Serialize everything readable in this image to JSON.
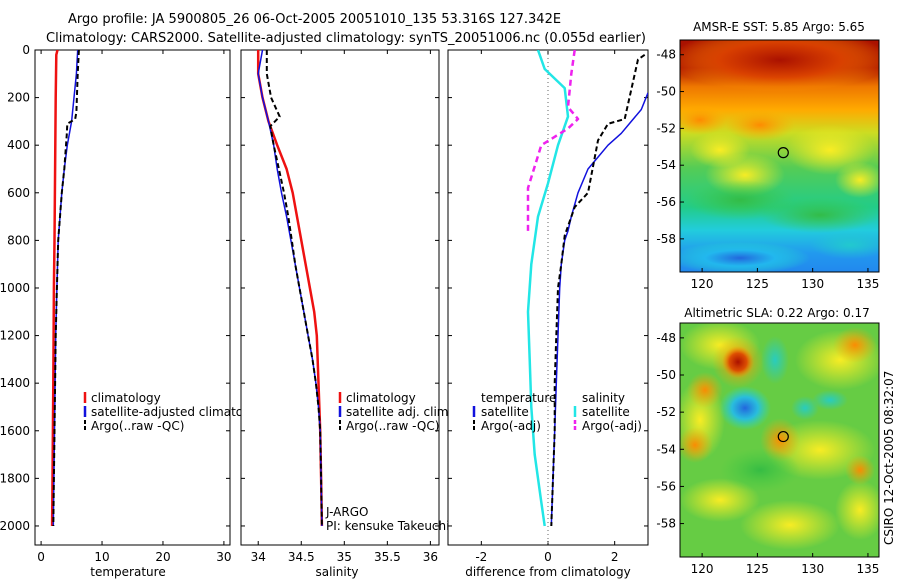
{
  "figure": {
    "title_line1": "Argo profile: JA 5900805_26 06-Oct-2005 20051010_135 53.316S 127.342E",
    "title_line2": "Climatology: CARS2000. Satellite-adjusted climatology: synTS_20051006.nc (0.055d earlier)",
    "credit": "CSIRO 12-Oct-2005 08:32:07"
  },
  "colors": {
    "climatology": "#ee1111",
    "satellite": "#1111dd",
    "argo": "#000000",
    "satellite_salinity": "#22e6e6",
    "argo_salinity": "#ee22ee",
    "zero_line": "#666666"
  },
  "chart_data": [
    {
      "id": "temperature-profile",
      "type": "line",
      "xlabel": "temperature",
      "ylabel": "",
      "xlim": [
        -1,
        31
      ],
      "ylim": [
        2080,
        0
      ],
      "x_ticks": [
        0,
        10,
        20,
        30
      ],
      "y_ticks": [
        0,
        200,
        400,
        600,
        800,
        1000,
        1200,
        1400,
        1600,
        1800,
        2000
      ],
      "legend": [
        "climatology",
        "satellite-adjusted climatology",
        "Argo(..raw -QC)"
      ],
      "series": [
        {
          "name": "climatology",
          "color": "#ee1111",
          "width": 2.5,
          "dash": "",
          "points": [
            [
              2.7,
              0
            ],
            [
              2.5,
              20
            ],
            [
              2.4,
              200
            ],
            [
              2.3,
              500
            ],
            [
              2.2,
              800
            ],
            [
              2.1,
              1000
            ],
            [
              2.0,
              1400
            ],
            [
              1.9,
              1700
            ],
            [
              1.8,
              2000
            ]
          ]
        },
        {
          "name": "satellite-adjusted climatology",
          "color": "#1111dd",
          "width": 1.5,
          "dash": "",
          "points": [
            [
              6.0,
              0
            ],
            [
              5.8,
              100
            ],
            [
              5.4,
              200
            ],
            [
              5.0,
              300
            ],
            [
              4.3,
              400
            ],
            [
              3.8,
              500
            ],
            [
              3.4,
              600
            ],
            [
              3.1,
              700
            ],
            [
              2.8,
              800
            ],
            [
              2.6,
              1000
            ],
            [
              2.4,
              1200
            ],
            [
              2.3,
              1400
            ],
            [
              2.2,
              1600
            ],
            [
              2.1,
              1800
            ],
            [
              2.0,
              2000
            ]
          ]
        },
        {
          "name": "Argo(..raw -QC)",
          "color": "#000000",
          "width": 2,
          "dash": "5,3",
          "points": [
            [
              6.2,
              0
            ],
            [
              6.0,
              100
            ],
            [
              5.8,
              260
            ],
            [
              5.6,
              290
            ],
            [
              4.3,
              310
            ],
            [
              4.2,
              360
            ],
            [
              3.8,
              500
            ],
            [
              3.4,
              600
            ],
            [
              3.1,
              700
            ],
            [
              2.8,
              800
            ],
            [
              2.6,
              1000
            ],
            [
              2.4,
              1200
            ],
            [
              2.3,
              1400
            ],
            [
              2.2,
              1600
            ],
            [
              2.1,
              1800
            ],
            [
              2.0,
              2000
            ]
          ]
        }
      ]
    },
    {
      "id": "salinity-profile",
      "type": "line",
      "xlabel": "salinity",
      "ylabel": "",
      "xlim": [
        33.8,
        36.1
      ],
      "ylim": [
        2080,
        0
      ],
      "x_ticks": [
        34,
        34.5,
        35,
        35.5,
        36
      ],
      "x_tick_labels": [
        "34",
        "34.5",
        "35",
        "35.5",
        "36"
      ],
      "legend": [
        "climatology",
        "satellite adj. clim.",
        "Argo(..raw -QC)"
      ],
      "annotations": [
        "J-ARGO",
        "PI: kensuke Takeuchi"
      ],
      "series": [
        {
          "name": "climatology",
          "color": "#ee1111",
          "width": 2.5,
          "dash": "",
          "points": [
            [
              34.0,
              0
            ],
            [
              34.0,
              100
            ],
            [
              34.05,
              200
            ],
            [
              34.12,
              300
            ],
            [
              34.22,
              400
            ],
            [
              34.33,
              500
            ],
            [
              34.4,
              600
            ],
            [
              34.45,
              700
            ],
            [
              34.5,
              800
            ],
            [
              34.55,
              900
            ],
            [
              34.6,
              1000
            ],
            [
              34.65,
              1100
            ],
            [
              34.68,
              1200
            ],
            [
              34.7,
              1400
            ],
            [
              34.72,
              1600
            ],
            [
              34.73,
              1800
            ],
            [
              34.74,
              2000
            ]
          ]
        },
        {
          "name": "satellite adj. clim.",
          "color": "#1111dd",
          "width": 1.5,
          "dash": "",
          "points": [
            [
              34.05,
              0
            ],
            [
              34.0,
              100
            ],
            [
              34.05,
              200
            ],
            [
              34.12,
              300
            ],
            [
              34.18,
              400
            ],
            [
              34.22,
              500
            ],
            [
              34.27,
              600
            ],
            [
              34.33,
              700
            ],
            [
              34.38,
              800
            ],
            [
              34.43,
              900
            ],
            [
              34.48,
              1000
            ],
            [
              34.53,
              1100
            ],
            [
              34.58,
              1200
            ],
            [
              34.63,
              1300
            ],
            [
              34.67,
              1400
            ],
            [
              34.7,
              1500
            ],
            [
              34.72,
              1600
            ],
            [
              34.73,
              1800
            ],
            [
              34.74,
              2000
            ]
          ]
        },
        {
          "name": "Argo(..raw -QC)",
          "color": "#000000",
          "width": 2,
          "dash": "5,3",
          "points": [
            [
              34.1,
              0
            ],
            [
              34.1,
              100
            ],
            [
              34.15,
              200
            ],
            [
              34.25,
              280
            ],
            [
              34.14,
              320
            ],
            [
              34.18,
              400
            ],
            [
              34.24,
              500
            ],
            [
              34.3,
              600
            ],
            [
              34.35,
              700
            ],
            [
              34.39,
              800
            ],
            [
              34.43,
              900
            ],
            [
              34.48,
              1000
            ],
            [
              34.53,
              1100
            ],
            [
              34.58,
              1200
            ],
            [
              34.63,
              1300
            ],
            [
              34.67,
              1400
            ],
            [
              34.7,
              1500
            ],
            [
              34.72,
              1600
            ],
            [
              34.73,
              1800
            ],
            [
              34.74,
              2000
            ]
          ]
        }
      ]
    },
    {
      "id": "difference-profile",
      "type": "line",
      "xlabel": "difference from climatology",
      "ylabel": "",
      "xlim": [
        -3,
        3
      ],
      "ylim": [
        2080,
        0
      ],
      "x_ticks": [
        -2,
        0,
        2
      ],
      "legend_headers": [
        "temperature",
        "salinity"
      ],
      "legend": [
        "satellite",
        "Argo(-adj)",
        "satellite",
        "Argo(-adj)"
      ],
      "series": [
        {
          "name": "temperature satellite",
          "color": "#1111dd",
          "width": 1.5,
          "dash": "",
          "points": [
            [
              3.0,
              180
            ],
            [
              2.8,
              250
            ],
            [
              2.5,
              300
            ],
            [
              2.2,
              350
            ],
            [
              1.8,
              400
            ],
            [
              1.5,
              450
            ],
            [
              1.2,
              500
            ],
            [
              0.9,
              600
            ],
            [
              0.7,
              700
            ],
            [
              0.6,
              760
            ],
            [
              0.5,
              800
            ],
            [
              0.4,
              900
            ],
            [
              0.35,
              1000
            ],
            [
              0.3,
              1200
            ],
            [
              0.25,
              1400
            ],
            [
              0.2,
              1600
            ],
            [
              0.15,
              1800
            ],
            [
              0.1,
              2000
            ]
          ]
        },
        {
          "name": "temperature Argo(-adj)",
          "color": "#000000",
          "width": 2,
          "dash": "5,3",
          "points": [
            [
              2.9,
              20
            ],
            [
              2.7,
              40
            ],
            [
              2.3,
              290
            ],
            [
              1.8,
              310
            ],
            [
              1.5,
              380
            ],
            [
              1.2,
              600
            ],
            [
              0.8,
              660
            ],
            [
              0.5,
              780
            ],
            [
              0.4,
              900
            ],
            [
              0.3,
              1000
            ],
            [
              0.25,
              1200
            ],
            [
              0.2,
              1400
            ],
            [
              0.2,
              1600
            ],
            [
              0.15,
              1800
            ],
            [
              0.1,
              2000
            ]
          ]
        },
        {
          "name": "salinity satellite",
          "color": "#22e6e6",
          "width": 2.5,
          "dash": "",
          "points": [
            [
              -0.3,
              0
            ],
            [
              -0.1,
              80
            ],
            [
              0.5,
              160
            ],
            [
              0.6,
              280
            ],
            [
              0.3,
              400
            ],
            [
              0.0,
              560
            ],
            [
              -0.3,
              700
            ],
            [
              -0.5,
              900
            ],
            [
              -0.6,
              1100
            ],
            [
              -0.55,
              1300
            ],
            [
              -0.5,
              1500
            ],
            [
              -0.4,
              1700
            ],
            [
              -0.2,
              1900
            ],
            [
              -0.1,
              2000
            ]
          ]
        },
        {
          "name": "salinity Argo(-adj)",
          "color": "#ee22ee",
          "width": 2.5,
          "dash": "6,4",
          "points": [
            [
              0.8,
              0
            ],
            [
              0.7,
              100
            ],
            [
              0.6,
              240
            ],
            [
              0.9,
              290
            ],
            [
              0.6,
              330
            ],
            [
              -0.2,
              400
            ],
            [
              -0.6,
              580
            ],
            [
              -0.6,
              760
            ]
          ]
        }
      ]
    },
    {
      "id": "sst-map",
      "type": "heatmap",
      "title": "AMSR-E SST: 5.85 Argo: 5.65",
      "xlim": [
        118,
        136
      ],
      "ylim": [
        -59.8,
        -47.2
      ],
      "x_ticks": [
        120,
        125,
        130,
        135
      ],
      "y_ticks": [
        -48,
        -50,
        -52,
        -54,
        -56,
        -58
      ],
      "marker": {
        "lon": 127.342,
        "lat": -53.316
      }
    },
    {
      "id": "sla-map",
      "type": "heatmap",
      "title": "Altimetric SLA: 0.22 Argo: 0.17",
      "xlim": [
        118,
        136
      ],
      "ylim": [
        -59.8,
        -47.2
      ],
      "x_ticks": [
        120,
        125,
        130,
        135
      ],
      "y_ticks": [
        -48,
        -50,
        -52,
        -54,
        -56,
        -58
      ],
      "marker": {
        "lon": 127.342,
        "lat": -53.316
      }
    }
  ]
}
